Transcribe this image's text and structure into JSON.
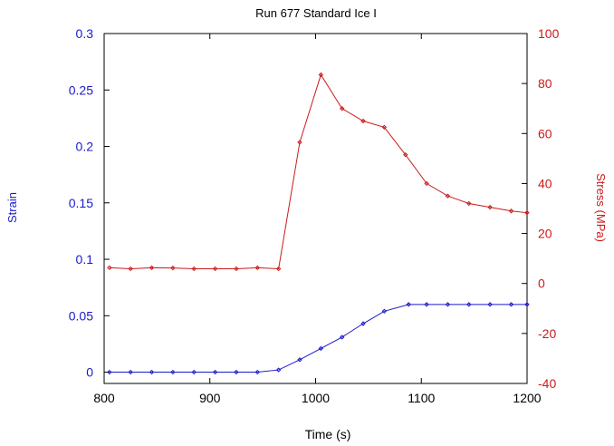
{
  "chart_data": {
    "type": "line",
    "title": "Run 677 Standard Ice I",
    "xlabel": "Time (s)",
    "ylabel_left": "Strain",
    "ylabel_right": "Stress (MPa)",
    "xlim": [
      800,
      1200
    ],
    "ylim_left": [
      -0.01,
      0.3
    ],
    "ylim_right": [
      -40,
      100
    ],
    "x_ticks": [
      800,
      900,
      1000,
      1100,
      1200
    ],
    "y_left_ticks": [
      "0",
      "0.05",
      "0.1",
      "0.15",
      "0.2",
      "0.25",
      "0.3"
    ],
    "y_left_tick_values": [
      0,
      0.05,
      0.1,
      0.15,
      0.2,
      0.25,
      0.3
    ],
    "y_right_ticks": [
      -40,
      -20,
      0,
      20,
      40,
      60,
      80,
      100
    ],
    "grid": false,
    "left_axis_color": "#1a1acc",
    "right_axis_color": "#cc1a1a",
    "series": [
      {
        "axis": "left",
        "color": "#1a1acc",
        "x": [
          805,
          825,
          845,
          865,
          885,
          905,
          925,
          945,
          965,
          985,
          1005,
          1025,
          1045,
          1065,
          1088,
          1105,
          1125,
          1145,
          1165,
          1185,
          1200
        ],
        "y": [
          0,
          0,
          0,
          0,
          0,
          0,
          0,
          0,
          0.002,
          0.011,
          0.021,
          0.031,
          0.043,
          0.054,
          0.06,
          0.06,
          0.06,
          0.06,
          0.06,
          0.06,
          0.06
        ]
      },
      {
        "axis": "right",
        "color": "#cc1a1a",
        "x": [
          805,
          825,
          845,
          865,
          885,
          905,
          925,
          945,
          965,
          985,
          1005,
          1025,
          1045,
          1065,
          1085,
          1105,
          1125,
          1145,
          1165,
          1185,
          1200
        ],
        "y": [
          6.3,
          5.9,
          6.3,
          6.2,
          5.9,
          5.9,
          5.9,
          6.3,
          5.9,
          56.5,
          83.5,
          70,
          65,
          62.5,
          51.5,
          40,
          35,
          32,
          30.5,
          29,
          28.3
        ]
      }
    ]
  }
}
